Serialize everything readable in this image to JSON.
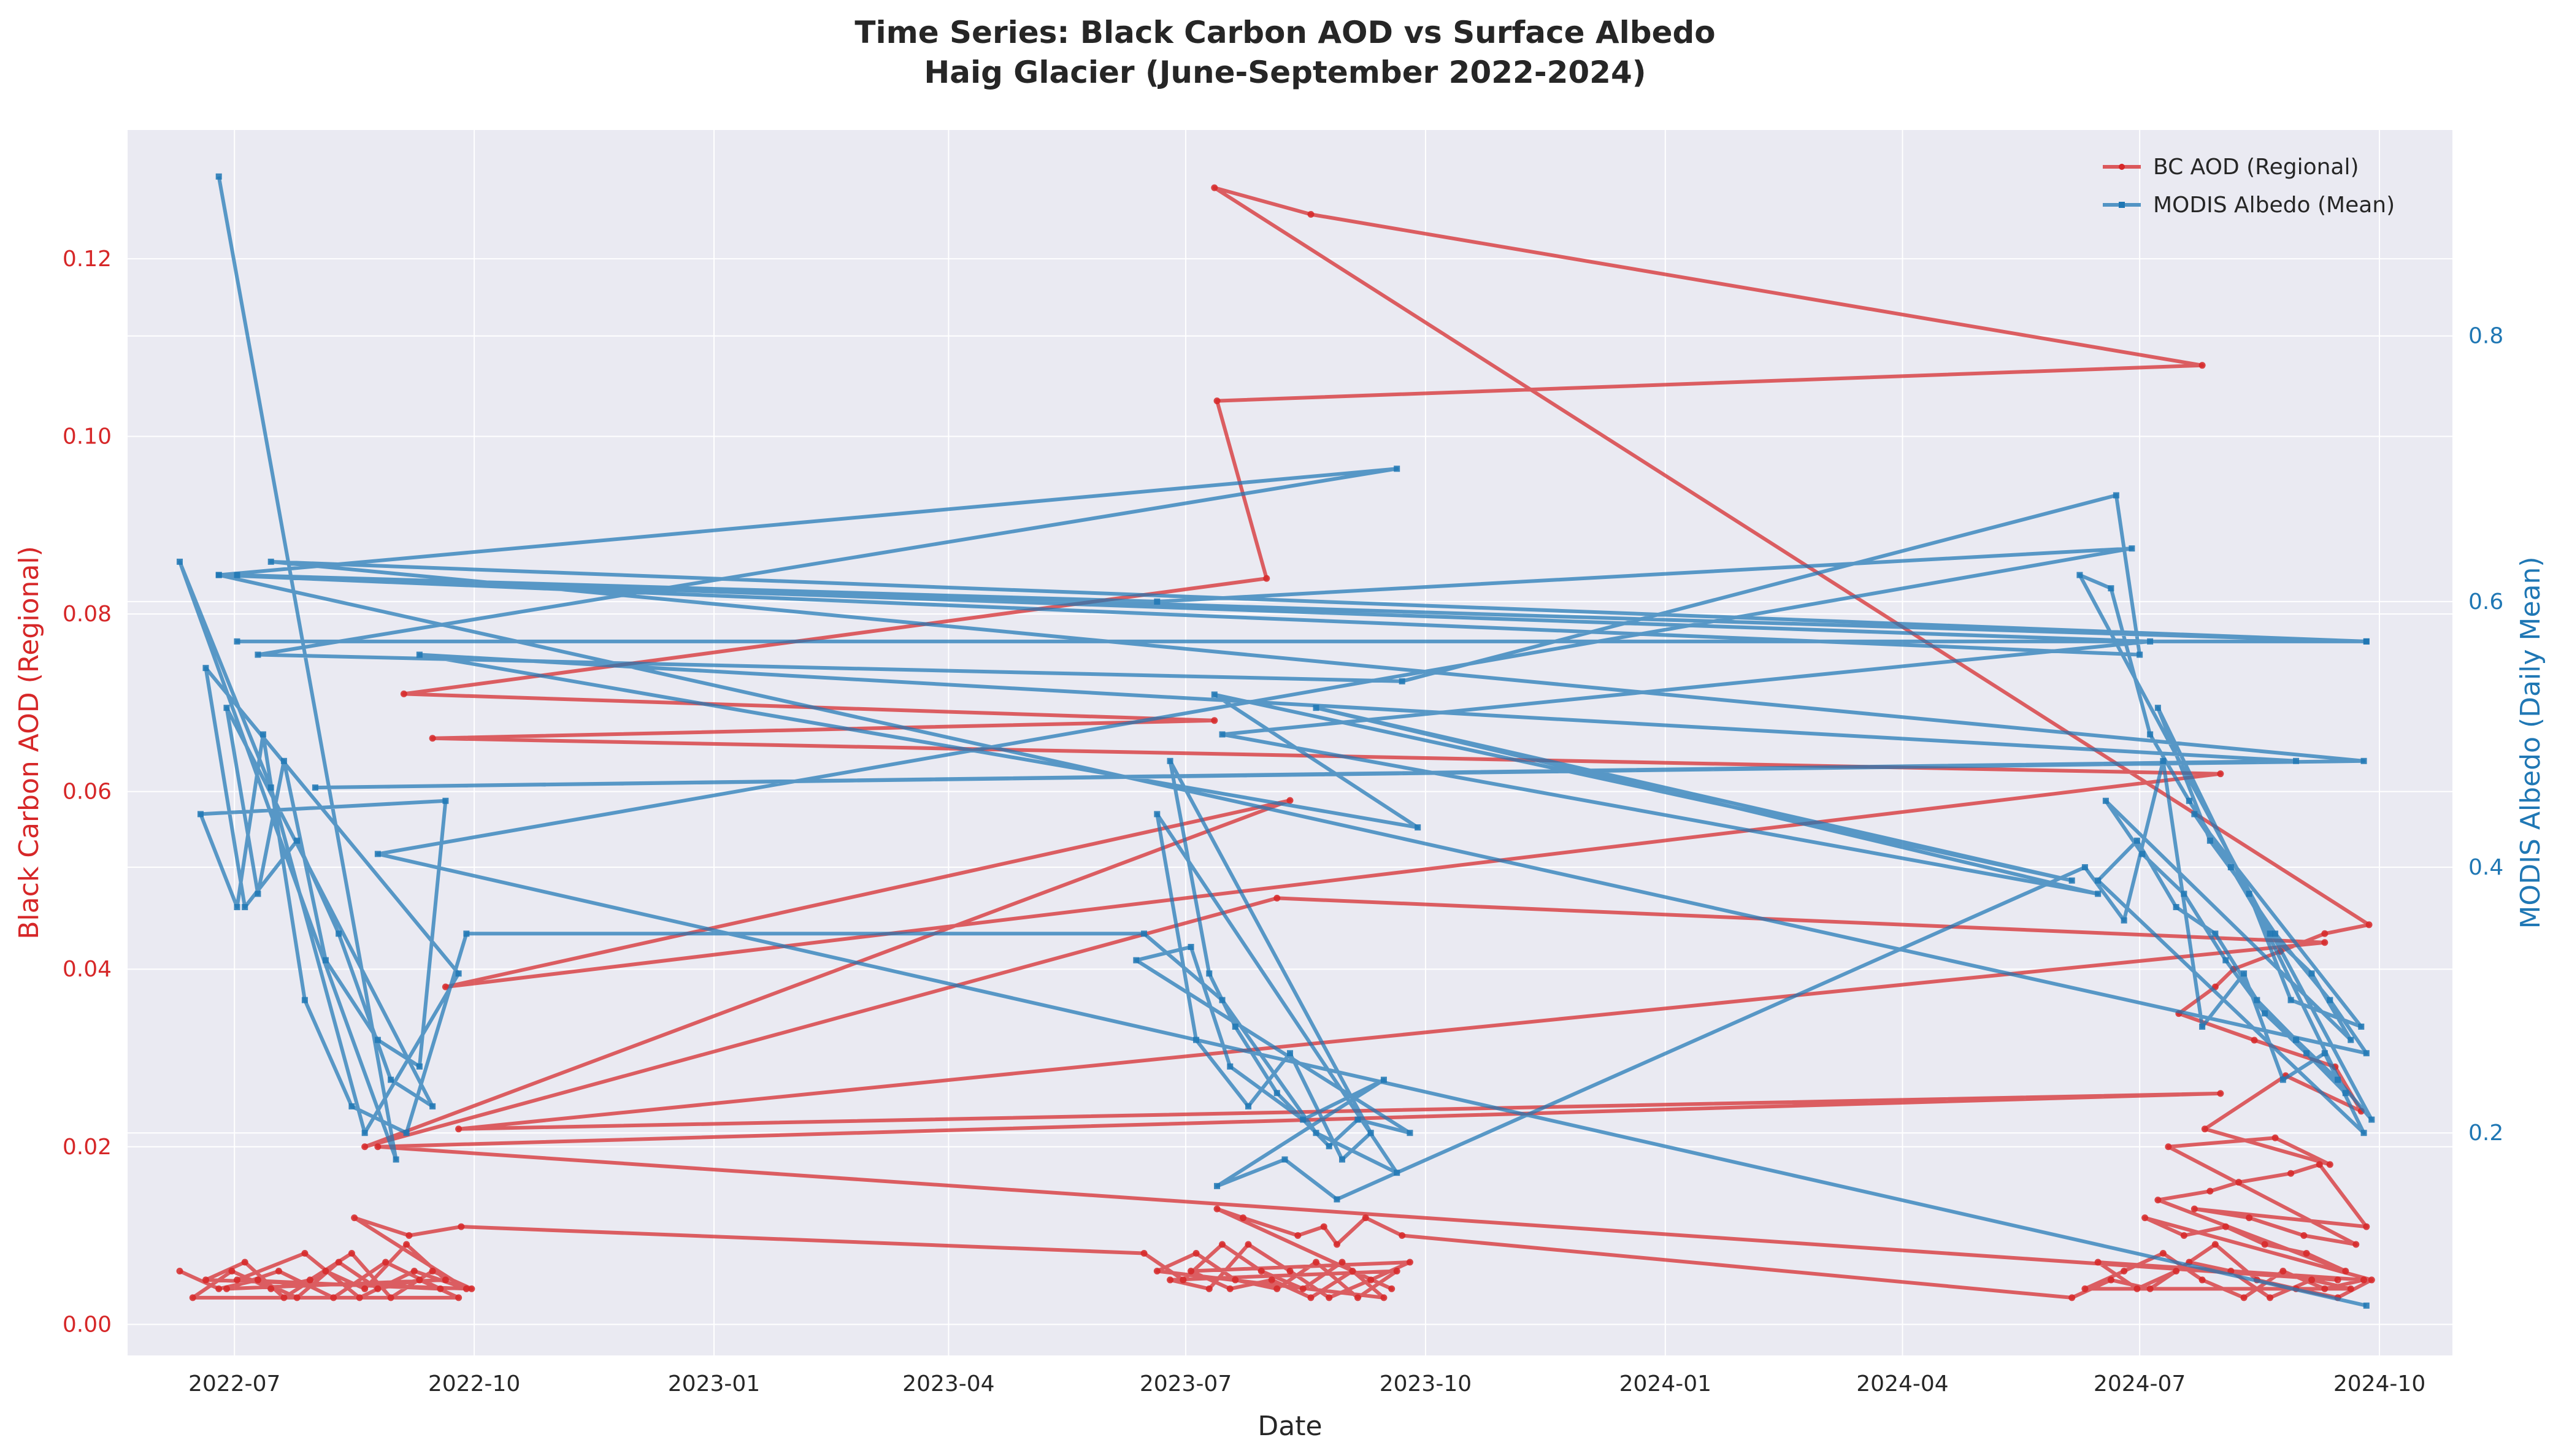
{
  "colors": {
    "plot_bg": "#eaeaf2",
    "grid": "#ffffff",
    "bc": "#d62728",
    "albedo": "#1f77b4",
    "text": "#262626"
  },
  "chart_data": {
    "type": "line",
    "title": "Time Series: Black Carbon AOD vs Surface Albedo",
    "subtitle": "Haig Glacier (June-September 2022-2024)",
    "xlabel": "Date",
    "ylabel_left": "Black Carbon AOD (Regional)",
    "ylabel_right": "MODIS Albedo (Daily Mean)",
    "xlim": [
      "2022-05-21",
      "2024-10-29"
    ],
    "ylim_left": [
      -0.0035,
      0.1345
    ],
    "ylim_right": [
      0.0325,
      0.955
    ],
    "x_ticks": [
      "2022-07",
      "2022-10",
      "2023-01",
      "2023-04",
      "2023-07",
      "2023-10",
      "2024-01",
      "2024-04",
      "2024-07",
      "2024-10"
    ],
    "x_tick_dates": [
      "2022-07-01",
      "2022-10-01",
      "2023-01-01",
      "2023-04-01",
      "2023-07-01",
      "2023-10-01",
      "2024-01-01",
      "2024-04-01",
      "2024-07-01",
      "2024-10-01"
    ],
    "y_left_ticks": [
      "0.00",
      "0.02",
      "0.04",
      "0.06",
      "0.08",
      "0.10",
      "0.12"
    ],
    "y_left_tick_values": [
      0.0,
      0.02,
      0.04,
      0.06,
      0.08,
      0.1,
      0.12
    ],
    "y_right_ticks": [
      "0.2",
      "0.4",
      "0.6",
      "0.8"
    ],
    "y_right_tick_values": [
      0.2,
      0.4,
      0.6,
      0.8
    ],
    "grid": true,
    "legend_position": "top-right",
    "series": [
      {
        "name": "BC AOD (Regional)",
        "axis": "left",
        "color": "#d62728",
        "x": [
          "2022-06-10",
          "2022-06-25",
          "2022-07-10",
          "2022-07-25",
          "2022-08-10",
          "2022-08-25",
          "2022-09-10",
          "2022-09-25",
          "2022-06-15",
          "2022-06-30",
          "2022-07-15",
          "2022-07-30",
          "2022-08-15",
          "2022-08-30",
          "2022-09-15",
          "2022-09-30",
          "2022-06-20",
          "2022-07-05",
          "2022-07-20",
          "2022-08-05",
          "2022-08-20",
          "2022-09-05",
          "2022-09-20",
          "2022-06-28",
          "2022-07-18",
          "2022-08-08",
          "2022-08-28",
          "2022-09-18",
          "2022-07-02",
          "2022-07-28",
          "2022-08-18",
          "2022-09-08",
          "2022-09-28",
          "2022-08-16",
          "2022-09-06",
          "2022-09-26",
          "2023-06-15",
          "2023-06-30",
          "2023-07-15",
          "2023-07-30",
          "2023-08-15",
          "2023-08-30",
          "2023-09-15",
          "2023-06-20",
          "2023-07-05",
          "2023-07-20",
          "2023-08-05",
          "2023-08-20",
          "2023-09-05",
          "2023-09-20",
          "2023-06-25",
          "2023-07-10",
          "2023-07-25",
          "2023-08-10",
          "2023-08-25",
          "2023-09-10",
          "2023-09-25",
          "2023-07-03",
          "2023-07-18",
          "2023-08-03",
          "2023-08-18",
          "2023-09-03",
          "2023-09-18",
          "2023-07-13",
          "2023-07-23",
          "2023-08-13",
          "2023-08-23",
          "2023-08-28",
          "2023-09-08",
          "2023-09-22",
          "2024-06-05",
          "2024-06-20",
          "2024-07-05",
          "2024-07-20",
          "2024-08-05",
          "2024-08-20",
          "2024-09-05",
          "2024-09-20",
          "2024-06-10",
          "2024-06-25",
          "2024-07-10",
          "2024-07-25",
          "2024-08-10",
          "2024-08-25",
          "2024-09-10",
          "2024-09-25",
          "2024-06-15",
          "2024-06-30",
          "2024-07-15",
          "2024-07-30",
          "2024-08-15",
          "2024-08-30",
          "2024-09-15",
          "2024-09-28",
          "2024-07-03",
          "2024-07-18",
          "2024-08-03",
          "2024-08-18",
          "2024-09-03",
          "2024-09-18",
          "2024-07-08",
          "2024-07-28",
          "2024-08-08",
          "2024-08-28",
          "2024-09-08",
          "2024-09-26",
          "2024-07-22",
          "2024-08-12",
          "2024-09-02",
          "2024-09-22",
          "2024-07-12",
          "2024-08-22",
          "2024-09-12",
          "2024-07-26",
          "2024-08-26",
          "2024-09-24",
          "2024-09-14",
          "2024-08-14",
          "2024-07-16",
          "2024-07-30",
          "2024-08-06",
          "2024-08-24",
          "2024-09-10",
          "2024-09-27",
          "2023-07-12",
          "2023-08-18",
          "2024-07-25",
          "2023-07-13",
          "2023-08-01",
          "2022-09-04",
          "2023-07-12",
          "2022-09-15",
          "2024-08-01",
          "2022-09-20",
          "2023-08-10",
          "2022-08-20",
          "2023-08-05",
          "2024-09-10",
          "2022-09-25",
          "2024-08-01",
          "2022-08-25",
          "2024-09-15"
        ],
        "y": [
          0.006,
          0.004,
          0.005,
          0.003,
          0.007,
          0.004,
          0.005,
          0.003,
          0.003,
          0.006,
          0.004,
          0.005,
          0.008,
          0.003,
          0.006,
          0.004,
          0.005,
          0.007,
          0.003,
          0.006,
          0.004,
          0.009,
          0.005,
          0.004,
          0.006,
          0.003,
          0.007,
          0.004,
          0.005,
          0.008,
          0.003,
          0.006,
          0.004,
          0.012,
          0.01,
          0.011,
          0.008,
          0.005,
          0.009,
          0.006,
          0.004,
          0.007,
          0.003,
          0.006,
          0.008,
          0.005,
          0.004,
          0.007,
          0.003,
          0.006,
          0.005,
          0.004,
          0.009,
          0.006,
          0.003,
          0.005,
          0.007,
          0.006,
          0.004,
          0.005,
          0.003,
          0.006,
          0.004,
          0.013,
          0.012,
          0.01,
          0.011,
          0.009,
          0.012,
          0.01,
          0.003,
          0.005,
          0.004,
          0.007,
          0.006,
          0.003,
          0.005,
          0.004,
          0.004,
          0.006,
          0.008,
          0.005,
          0.003,
          0.006,
          0.004,
          0.005,
          0.007,
          0.004,
          0.006,
          0.009,
          0.005,
          0.004,
          0.003,
          0.005,
          0.012,
          0.01,
          0.011,
          0.009,
          0.008,
          0.006,
          0.014,
          0.015,
          0.016,
          0.017,
          0.018,
          0.011,
          0.013,
          0.012,
          0.01,
          0.009,
          0.02,
          0.021,
          0.018,
          0.022,
          0.028,
          0.024,
          0.029,
          0.032,
          0.035,
          0.038,
          0.04,
          0.042,
          0.044,
          0.045,
          0.128,
          0.125,
          0.108,
          0.104,
          0.084,
          0.071,
          0.068,
          0.066,
          0.062,
          0.038,
          0.059,
          0.02,
          0.048,
          0.043,
          0.022,
          0.026,
          0.02,
          0.005
        ]
      },
      {
        "name": "MODIS Albedo (Mean)",
        "axis": "right",
        "color": "#1f77b4",
        "x": [
          "2022-06-25",
          "2022-09-01",
          "2022-06-10",
          "2022-07-15",
          "2022-08-20",
          "2022-09-25",
          "2022-06-20",
          "2022-07-05",
          "2022-07-25",
          "2022-08-10",
          "2022-08-30",
          "2022-09-15",
          "2022-06-28",
          "2022-07-10",
          "2022-07-20",
          "2022-08-05",
          "2022-08-25",
          "2022-09-10",
          "2022-09-20",
          "2022-06-18",
          "2022-07-02",
          "2022-07-12",
          "2022-07-28",
          "2022-08-15",
          "2022-09-05",
          "2022-09-28",
          "2023-06-15",
          "2023-07-15",
          "2023-08-20",
          "2023-09-20",
          "2023-06-20",
          "2023-07-05",
          "2023-07-25",
          "2023-08-10",
          "2023-08-30",
          "2023-09-10",
          "2023-06-25",
          "2023-07-10",
          "2023-07-20",
          "2023-08-05",
          "2023-08-25",
          "2023-09-05",
          "2023-09-25",
          "2023-06-12",
          "2023-07-03",
          "2023-07-18",
          "2023-08-15",
          "2023-09-15",
          "2023-07-13",
          "2023-08-08",
          "2023-08-28",
          "2024-06-10",
          "2024-06-25",
          "2024-07-10",
          "2024-07-25",
          "2024-08-10",
          "2024-08-25",
          "2024-09-10",
          "2024-09-25",
          "2024-06-15",
          "2024-06-30",
          "2024-07-15",
          "2024-07-30",
          "2024-08-15",
          "2024-08-30",
          "2024-09-15",
          "2024-09-28",
          "2024-06-08",
          "2024-06-20",
          "2024-07-05",
          "2024-07-20",
          "2024-08-05",
          "2024-08-20",
          "2024-09-05",
          "2024-09-20",
          "2024-06-18",
          "2024-07-02",
          "2024-07-18",
          "2024-08-03",
          "2024-08-18",
          "2024-09-03",
          "2024-09-18",
          "2024-07-08",
          "2024-07-28",
          "2024-08-12",
          "2024-08-28",
          "2024-09-24",
          "2024-07-22",
          "2024-08-22",
          "2024-09-12",
          "2024-09-26",
          "2022-06-25",
          "2023-09-20",
          "2022-07-10",
          "2023-09-22",
          "2024-06-22",
          "2024-07-01",
          "2022-06-25",
          "2024-09-26",
          "2022-07-02",
          "2024-09-26",
          "2022-07-15",
          "2024-09-25",
          "2022-08-01",
          "2024-08-30",
          "2022-09-10",
          "2023-09-28",
          "2023-07-12",
          "2024-06-05",
          "2023-08-20",
          "2024-06-15",
          "2023-07-15",
          "2024-07-05",
          "2022-07-02",
          "2023-06-20",
          "2024-06-28",
          "2022-08-25",
          "2024-09-26"
        ],
        "y": [
          0.92,
          0.18,
          0.63,
          0.46,
          0.2,
          0.32,
          0.55,
          0.37,
          0.42,
          0.35,
          0.24,
          0.22,
          0.52,
          0.38,
          0.48,
          0.33,
          0.27,
          0.25,
          0.45,
          0.44,
          0.37,
          0.5,
          0.3,
          0.22,
          0.2,
          0.35,
          0.35,
          0.3,
          0.2,
          0.17,
          0.44,
          0.27,
          0.22,
          0.26,
          0.18,
          0.2,
          0.48,
          0.32,
          0.28,
          0.23,
          0.19,
          0.21,
          0.2,
          0.33,
          0.34,
          0.25,
          0.21,
          0.24,
          0.16,
          0.18,
          0.15,
          0.4,
          0.36,
          0.48,
          0.28,
          0.32,
          0.24,
          0.26,
          0.2,
          0.39,
          0.42,
          0.37,
          0.35,
          0.3,
          0.27,
          0.24,
          0.21,
          0.62,
          0.61,
          0.5,
          0.45,
          0.4,
          0.35,
          0.32,
          0.27,
          0.45,
          0.41,
          0.38,
          0.33,
          0.29,
          0.26,
          0.23,
          0.52,
          0.42,
          0.38,
          0.3,
          0.28,
          0.44,
          0.35,
          0.3,
          0.26,
          0.62,
          0.7,
          0.56,
          0.54,
          0.68,
          0.56,
          0.62,
          0.57,
          0.57,
          0.57,
          0.63,
          0.48,
          0.46,
          0.48,
          0.56,
          0.43,
          0.53,
          0.39,
          0.52,
          0.38,
          0.5,
          0.57,
          0.62,
          0.6,
          0.64,
          0.41,
          0.07
        ]
      }
    ]
  }
}
